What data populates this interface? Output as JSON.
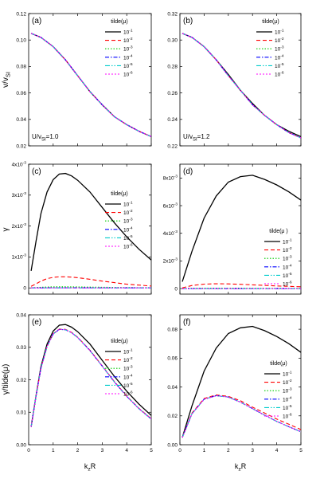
{
  "figure": {
    "ylabels": [
      "v/v",
      "γ",
      "γ/tilde(μ)"
    ],
    "ylabel_sub": [
      "SI",
      "",
      ""
    ],
    "xlabel": "k",
    "xlabel_sub": "z",
    "xlabel_tail": "R"
  },
  "colors": {
    "s1": "#000000",
    "s2": "#ff0000",
    "s3": "#00cc00",
    "s4": "#0000ff",
    "s5": "#00cccc",
    "s6": "#ff00ff"
  },
  "chart_data": [
    {
      "type": "line",
      "panel_label": "(a)",
      "note": "U/v",
      "note_sub": "SI",
      "note_tail": "=1.0",
      "legend_title": "tilde(μ)",
      "legend_placement": "top-right",
      "xlim": [
        0,
        5
      ],
      "ylim": [
        0.02,
        0.12
      ],
      "xticks": [
        "0",
        "1",
        "2",
        "3",
        "4",
        "5"
      ],
      "yticks": [
        "0.02",
        "0.04",
        "0.06",
        "0.08",
        "0.10",
        "0.12"
      ],
      "x": [
        0.1,
        0.5,
        1.0,
        1.5,
        2.0,
        2.5,
        3.0,
        3.5,
        4.0,
        4.5,
        5.0
      ],
      "series": [
        {
          "name": "10",
          "exp": "-1",
          "values": [
            0.105,
            0.102,
            0.095,
            0.085,
            0.073,
            0.061,
            0.051,
            0.042,
            0.036,
            0.031,
            0.027
          ]
        },
        {
          "name": "10",
          "exp": "-2",
          "values": [
            0.105,
            0.102,
            0.095,
            0.085,
            0.073,
            0.061,
            0.051,
            0.042,
            0.036,
            0.031,
            0.027
          ]
        },
        {
          "name": "10",
          "exp": "-3",
          "values": [
            0.105,
            0.102,
            0.095,
            0.085,
            0.073,
            0.061,
            0.051,
            0.042,
            0.036,
            0.031,
            0.027
          ]
        },
        {
          "name": "10",
          "exp": "-4",
          "values": [
            0.105,
            0.102,
            0.095,
            0.085,
            0.073,
            0.061,
            0.051,
            0.042,
            0.036,
            0.031,
            0.027
          ]
        },
        {
          "name": "10",
          "exp": "-5",
          "values": [
            0.105,
            0.102,
            0.095,
            0.085,
            0.073,
            0.061,
            0.051,
            0.042,
            0.036,
            0.031,
            0.027
          ]
        },
        {
          "name": "10",
          "exp": "-6",
          "values": [
            0.105,
            0.102,
            0.095,
            0.085,
            0.073,
            0.061,
            0.051,
            0.042,
            0.036,
            0.031,
            0.027
          ]
        }
      ]
    },
    {
      "type": "line",
      "panel_label": "(b)",
      "note": "U/v",
      "note_sub": "SI",
      "note_tail": "=1.2",
      "legend_title": "tilde(μ)",
      "legend_placement": "top-right",
      "xlim": [
        0,
        5
      ],
      "ylim": [
        0.22,
        0.32
      ],
      "xticks": [
        "0",
        "1",
        "2",
        "3",
        "4",
        "5"
      ],
      "yticks": [
        "0.22",
        "0.24",
        "0.26",
        "0.28",
        "0.30",
        "0.32"
      ],
      "x": [
        0.1,
        0.5,
        1.0,
        1.5,
        2.0,
        2.5,
        3.0,
        3.5,
        4.0,
        4.5,
        5.0
      ],
      "series": [
        {
          "name": "10",
          "exp": "-1",
          "values": [
            0.305,
            0.302,
            0.295,
            0.285,
            0.274,
            0.262,
            0.252,
            0.243,
            0.236,
            0.231,
            0.227
          ]
        },
        {
          "name": "10",
          "exp": "-2",
          "values": [
            0.305,
            0.302,
            0.295,
            0.285,
            0.273,
            0.262,
            0.251,
            0.243,
            0.236,
            0.23,
            0.226
          ]
        },
        {
          "name": "10",
          "exp": "-3",
          "values": [
            0.305,
            0.302,
            0.295,
            0.285,
            0.273,
            0.262,
            0.251,
            0.243,
            0.236,
            0.23,
            0.226
          ]
        },
        {
          "name": "10",
          "exp": "-4",
          "values": [
            0.305,
            0.302,
            0.295,
            0.285,
            0.273,
            0.262,
            0.251,
            0.243,
            0.236,
            0.23,
            0.226
          ]
        },
        {
          "name": "10",
          "exp": "-5",
          "values": [
            0.305,
            0.302,
            0.295,
            0.285,
            0.273,
            0.262,
            0.251,
            0.243,
            0.236,
            0.23,
            0.226
          ]
        },
        {
          "name": "10",
          "exp": "-6",
          "values": [
            0.305,
            0.302,
            0.295,
            0.285,
            0.273,
            0.262,
            0.251,
            0.243,
            0.236,
            0.23,
            0.226
          ]
        }
      ]
    },
    {
      "type": "line",
      "panel_label": "(c)",
      "legend_title": "tilde(μ)",
      "legend_placement": "right",
      "xlim": [
        0,
        5
      ],
      "ylim": [
        -0.0002,
        0.004
      ],
      "xticks": [
        "0",
        "1",
        "2",
        "3",
        "4",
        "5"
      ],
      "yticks": [
        {
          "v": 0,
          "m": "0",
          "e": ""
        },
        {
          "v": 0.001,
          "m": "1x10",
          "e": "-3"
        },
        {
          "v": 0.002,
          "m": "2x10",
          "e": "-3"
        },
        {
          "v": 0.003,
          "m": "3x10",
          "e": "-3"
        },
        {
          "v": 0.004,
          "m": "4x10",
          "e": "-3"
        }
      ],
      "x": [
        0.1,
        0.3,
        0.5,
        0.75,
        1.0,
        1.25,
        1.5,
        1.75,
        2.0,
        2.5,
        3.0,
        3.5,
        4.0,
        4.5,
        5.0
      ],
      "series": [
        {
          "name": "10",
          "exp": "-1",
          "values": [
            0.00055,
            0.0015,
            0.0024,
            0.0031,
            0.0035,
            0.00368,
            0.0037,
            0.00362,
            0.00348,
            0.0031,
            0.0026,
            0.0021,
            0.00165,
            0.00125,
            0.0009
          ]
        },
        {
          "name": "10",
          "exp": "-2",
          "values": [
            5e-05,
            0.00013,
            0.00022,
            0.0003,
            0.00034,
            0.00036,
            0.00036,
            0.00035,
            0.00033,
            0.00028,
            0.00022,
            0.00017,
            0.00012,
            9e-05,
            6e-05
          ]
        },
        {
          "name": "10",
          "exp": "-3",
          "values": [
            5e-06,
            1.3e-05,
            2.2e-05,
            3e-05,
            3.4e-05,
            3.6e-05,
            3.6e-05,
            3.5e-05,
            3.3e-05,
            2.8e-05,
            2.2e-05,
            1.7e-05,
            1.2e-05,
            9e-06,
            6e-06
          ]
        },
        {
          "name": "10",
          "exp": "-4",
          "values": [
            5e-07,
            1.3e-06,
            2.2e-06,
            3e-06,
            3.4e-06,
            3.6e-06,
            3.6e-06,
            3.5e-06,
            3.3e-06,
            2.8e-06,
            2.2e-06,
            1.7e-06,
            1.2e-06,
            9e-07,
            6e-07
          ]
        },
        {
          "name": "10",
          "exp": "-5",
          "values": [
            0,
            0,
            0,
            0,
            0,
            0,
            0,
            0,
            0,
            0,
            0,
            0,
            0,
            0,
            0
          ]
        },
        {
          "name": "10",
          "exp": "-6",
          "values": [
            0,
            0,
            0,
            0,
            0,
            0,
            0,
            0,
            0,
            0,
            0,
            0,
            0,
            0,
            0
          ]
        }
      ]
    },
    {
      "type": "line",
      "panel_label": "(d)",
      "legend_title": "tilde(μ )",
      "legend_placement": "right",
      "xlim": [
        0,
        5
      ],
      "ylim": [
        -0.0004,
        0.009
      ],
      "xticks": [
        "0",
        "1",
        "2",
        "3",
        "4",
        "5"
      ],
      "yticks": [
        {
          "v": 0,
          "m": "0",
          "e": ""
        },
        {
          "v": 0.002,
          "m": "2x10",
          "e": "-3"
        },
        {
          "v": 0.004,
          "m": "4x10",
          "e": "-3"
        },
        {
          "v": 0.006,
          "m": "6x10",
          "e": "-3"
        },
        {
          "v": 0.008,
          "m": "8x10",
          "e": "-3"
        }
      ],
      "x": [
        0.1,
        0.5,
        1.0,
        1.5,
        2.0,
        2.5,
        3.0,
        3.5,
        4.0,
        4.5,
        5.0
      ],
      "series": [
        {
          "name": "10",
          "exp": "-1",
          "values": [
            0.0005,
            0.0027,
            0.0051,
            0.0067,
            0.0077,
            0.0081,
            0.0082,
            0.0079,
            0.0075,
            0.007,
            0.0064
          ]
        },
        {
          "name": "10",
          "exp": "-2",
          "values": [
            5e-05,
            0.00022,
            0.00032,
            0.00035,
            0.00034,
            0.00031,
            0.00027,
            0.00023,
            0.00019,
            0.00016,
            0.00013
          ]
        },
        {
          "name": "10",
          "exp": "-3",
          "values": [
            5e-06,
            2.2e-05,
            3.2e-05,
            3.5e-05,
            3.4e-05,
            3.1e-05,
            2.7e-05,
            2.3e-05,
            1.9e-05,
            1.6e-05,
            1.3e-05
          ]
        },
        {
          "name": "10",
          "exp": "-4",
          "values": [
            0,
            0,
            0,
            0,
            0,
            0,
            0,
            0,
            0,
            0,
            0
          ]
        },
        {
          "name": "10",
          "exp": "-5",
          "values": [
            0,
            0,
            0,
            0,
            0,
            0,
            0,
            0,
            0,
            0,
            0
          ]
        },
        {
          "name": "10",
          "exp": "-6",
          "values": [
            0,
            0,
            0,
            0,
            0,
            0,
            0,
            0,
            0,
            0,
            0
          ]
        }
      ]
    },
    {
      "type": "line",
      "panel_label": "(e)",
      "legend_title": "tilde(μ)",
      "legend_placement": "right",
      "xlim": [
        0,
        5
      ],
      "ylim": [
        0,
        0.04
      ],
      "xticks": [
        "0",
        "1",
        "2",
        "3",
        "4",
        "5"
      ],
      "yticks": [
        "0.00",
        "0.01",
        "0.02",
        "0.03",
        "0.04"
      ],
      "x": [
        0.1,
        0.3,
        0.5,
        0.75,
        1.0,
        1.25,
        1.5,
        1.75,
        2.0,
        2.5,
        3.0,
        3.5,
        4.0,
        4.5,
        5.0
      ],
      "series": [
        {
          "name": "10",
          "exp": "-1",
          "values": [
            0.0055,
            0.015,
            0.024,
            0.031,
            0.035,
            0.0368,
            0.037,
            0.0362,
            0.0348,
            0.031,
            0.026,
            0.021,
            0.0165,
            0.0125,
            0.009
          ]
        },
        {
          "name": "10",
          "exp": "-2",
          "values": [
            0.0055,
            0.0148,
            0.0235,
            0.0303,
            0.0342,
            0.0356,
            0.0355,
            0.0346,
            0.0331,
            0.0291,
            0.0243,
            0.0194,
            0.015,
            0.0112,
            0.008
          ]
        },
        {
          "name": "10",
          "exp": "-3",
          "values": [
            0.0055,
            0.0148,
            0.0235,
            0.0302,
            0.0341,
            0.0355,
            0.0354,
            0.0345,
            0.033,
            0.029,
            0.0242,
            0.0193,
            0.0149,
            0.0111,
            0.0079
          ]
        },
        {
          "name": "10",
          "exp": "-4",
          "values": [
            0.0055,
            0.0148,
            0.0235,
            0.0302,
            0.0341,
            0.0355,
            0.0354,
            0.0345,
            0.033,
            0.029,
            0.0242,
            0.0193,
            0.0149,
            0.0111,
            0.0079
          ]
        },
        {
          "name": "10",
          "exp": "-5",
          "values": [
            0.0055,
            0.0148,
            0.0235,
            0.0302,
            0.0341,
            0.0355,
            0.0354,
            0.0345,
            0.033,
            0.029,
            0.0242,
            0.0193,
            0.0149,
            0.0111,
            0.0079
          ]
        },
        {
          "name": "10",
          "exp": "-6",
          "values": [
            0.0055,
            0.0148,
            0.0235,
            0.0302,
            0.0341,
            0.0355,
            0.0354,
            0.0345,
            0.033,
            0.029,
            0.0242,
            0.0193,
            0.0149,
            0.0111,
            0.0079
          ]
        }
      ]
    },
    {
      "type": "line",
      "panel_label": "(f)",
      "legend_title": "tilde(μ)",
      "legend_placement": "right",
      "xlim": [
        0,
        5
      ],
      "ylim": [
        0,
        0.09
      ],
      "xticks": [
        "0",
        "1",
        "2",
        "3",
        "4",
        "5"
      ],
      "yticks": [
        "0.00",
        "0.02",
        "0.04",
        "0.06",
        "0.08"
      ],
      "x": [
        0.1,
        0.5,
        1.0,
        1.5,
        2.0,
        2.5,
        3.0,
        3.5,
        4.0,
        4.5,
        5.0
      ],
      "series": [
        {
          "name": "10",
          "exp": "-1",
          "values": [
            0.005,
            0.027,
            0.051,
            0.067,
            0.077,
            0.081,
            0.082,
            0.079,
            0.075,
            0.07,
            0.064
          ]
        },
        {
          "name": "10",
          "exp": "-2",
          "values": [
            0.005,
            0.022,
            0.032,
            0.0345,
            0.0335,
            0.0305,
            0.026,
            0.022,
            0.0178,
            0.0142,
            0.0105
          ]
        },
        {
          "name": "10",
          "exp": "-3",
          "values": [
            0.005,
            0.0215,
            0.0315,
            0.034,
            0.033,
            0.0295,
            0.025,
            0.0205,
            0.0162,
            0.0125,
            0.009
          ]
        },
        {
          "name": "10",
          "exp": "-4",
          "values": [
            0.005,
            0.0215,
            0.0315,
            0.034,
            0.033,
            0.0295,
            0.025,
            0.0205,
            0.0162,
            0.0125,
            0.009
          ]
        },
        {
          "name": "10",
          "exp": "-5",
          "values": [
            0.005,
            0.0215,
            0.0315,
            0.034,
            0.033,
            0.0295,
            0.025,
            0.0205,
            0.0162,
            0.0125,
            0.009
          ]
        },
        {
          "name": "10",
          "exp": "-6",
          "values": [
            0.005,
            0.0215,
            0.0315,
            0.034,
            0.033,
            0.0295,
            0.025,
            0.0205,
            0.0162,
            0.0125,
            0.009
          ]
        }
      ]
    }
  ]
}
